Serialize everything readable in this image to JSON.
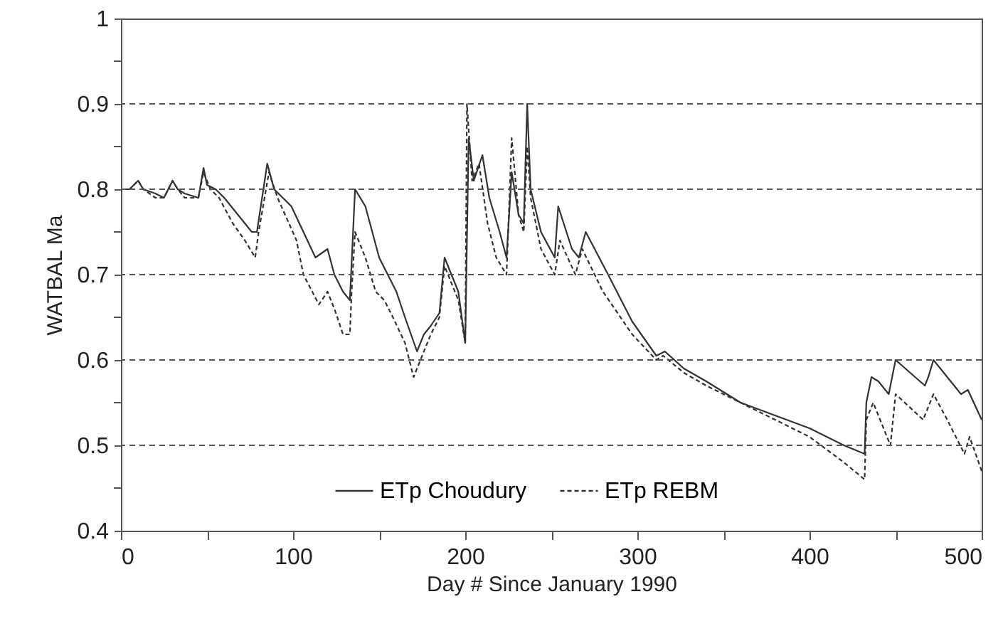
{
  "chart_data": {
    "type": "line",
    "xlabel": "Day # Since January 1990",
    "ylabel": "WATBAL Ma",
    "xlim": [
      0,
      500
    ],
    "xticks": [
      0,
      {
        "value": 50,
        "label": null
      },
      100,
      {
        "value": 150,
        "label": null
      },
      200,
      {
        "value": 250,
        "label": null
      },
      300,
      {
        "value": 350,
        "label": null
      },
      400,
      {
        "value": 450,
        "label": null
      },
      500
    ],
    "ylim": [
      0.4,
      1
    ],
    "yticks": [
      0.4,
      {
        "value": 0.45,
        "label": null
      },
      0.5,
      {
        "value": 0.55,
        "label": null
      },
      0.6,
      {
        "value": 0.65,
        "label": null
      },
      0.7,
      {
        "value": 0.75,
        "label": null
      },
      0.8,
      {
        "value": 0.85,
        "label": null
      },
      0.9,
      {
        "value": 0.95,
        "label": null
      },
      1
    ],
    "grid": "y",
    "legend": "bottom",
    "marker": "none",
    "series": [
      {
        "name": "ETp Choudury",
        "color": "#333333",
        "line_style": "solid",
        "x": [
          0,
          5,
          10,
          13,
          20,
          25,
          30,
          33,
          37,
          45,
          48,
          50,
          55,
          60,
          68,
          76,
          79,
          85,
          89,
          94,
          99,
          106,
          113,
          120,
          124,
          129,
          133,
          136,
          142,
          150,
          155,
          160,
          165,
          172,
          176,
          180,
          185,
          188,
          192,
          196,
          200,
          202,
          205,
          210,
          214,
          220,
          224,
          227,
          231,
          234,
          236,
          238,
          244,
          252,
          254,
          262,
          266,
          270,
          283,
          297,
          311,
          316,
          327,
          340,
          360,
          380,
          400,
          420,
          432,
          433,
          436,
          440,
          446,
          450,
          467,
          469,
          472,
          480,
          488,
          492,
          500
        ],
        "values": [
          0.8,
          0.8,
          0.81,
          0.8,
          0.795,
          0.79,
          0.81,
          0.8,
          0.795,
          0.79,
          0.825,
          0.805,
          0.8,
          0.79,
          0.77,
          0.75,
          0.75,
          0.83,
          0.8,
          0.79,
          0.78,
          0.75,
          0.72,
          0.73,
          0.7,
          0.68,
          0.67,
          0.8,
          0.78,
          0.72,
          0.7,
          0.68,
          0.65,
          0.61,
          0.63,
          0.64,
          0.655,
          0.72,
          0.7,
          0.68,
          0.62,
          0.86,
          0.81,
          0.84,
          0.79,
          0.75,
          0.72,
          0.82,
          0.77,
          0.76,
          0.9,
          0.8,
          0.75,
          0.72,
          0.78,
          0.73,
          0.72,
          0.75,
          0.7,
          0.645,
          0.605,
          0.61,
          0.59,
          0.575,
          0.55,
          0.535,
          0.52,
          0.5,
          0.49,
          0.55,
          0.58,
          0.575,
          0.56,
          0.6,
          0.57,
          0.58,
          0.6,
          0.58,
          0.56,
          0.565,
          0.53
        ]
      },
      {
        "name": "ETp REBM",
        "color": "#333333",
        "line_style": "dashed",
        "x": [
          0,
          5,
          10,
          13,
          20,
          25,
          30,
          33,
          37,
          45,
          48,
          52,
          57,
          65,
          72,
          78,
          80,
          86,
          91,
          102,
          106,
          115,
          120,
          124,
          129,
          133,
          134,
          136,
          142,
          148,
          153,
          158,
          165,
          170,
          174,
          180,
          185,
          188,
          192,
          196,
          200,
          201,
          204,
          208,
          213,
          218,
          224,
          227,
          231,
          234,
          236,
          238,
          244,
          252,
          255,
          264,
          268,
          280,
          297,
          311,
          315,
          327,
          340,
          360,
          380,
          400,
          420,
          432,
          433,
          437,
          447,
          450,
          466,
          472,
          480,
          490,
          493,
          500
        ],
        "values": [
          0.8,
          0.8,
          0.81,
          0.8,
          0.79,
          0.79,
          0.81,
          0.8,
          0.79,
          0.79,
          0.82,
          0.8,
          0.79,
          0.76,
          0.74,
          0.72,
          0.75,
          0.82,
          0.79,
          0.74,
          0.7,
          0.665,
          0.68,
          0.66,
          0.63,
          0.63,
          0.68,
          0.75,
          0.72,
          0.68,
          0.67,
          0.65,
          0.62,
          0.58,
          0.6,
          0.63,
          0.65,
          0.71,
          0.69,
          0.67,
          0.62,
          0.9,
          0.81,
          0.83,
          0.76,
          0.72,
          0.7,
          0.86,
          0.77,
          0.75,
          0.85,
          0.79,
          0.73,
          0.7,
          0.74,
          0.7,
          0.73,
          0.68,
          0.63,
          0.6,
          0.605,
          0.585,
          0.57,
          0.55,
          0.53,
          0.51,
          0.48,
          0.46,
          0.53,
          0.55,
          0.5,
          0.56,
          0.53,
          0.56,
          0.53,
          0.49,
          0.51,
          0.47
        ]
      }
    ]
  }
}
